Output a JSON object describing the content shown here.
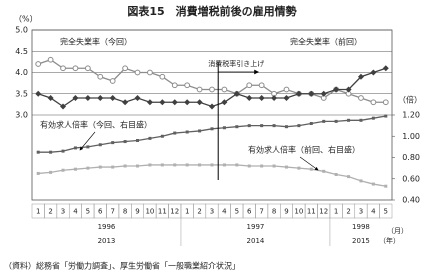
{
  "chart_data": {
    "type": "line",
    "title": "図表15　消費増税前後の雇用情勢",
    "y_label": "（%）",
    "y2_label": "（倍）",
    "month_label": "（月）",
    "year_unit": "（年）",
    "categories": [
      "1",
      "2",
      "3",
      "4",
      "5",
      "6",
      "7",
      "8",
      "9",
      "10",
      "11",
      "12",
      "1",
      "2",
      "3",
      "4",
      "5",
      "6",
      "7",
      "8",
      "9",
      "10",
      "11",
      "12",
      "1",
      "2",
      "3",
      "4",
      "5"
    ],
    "year_rows": [
      [
        "1996",
        "1997",
        "1998"
      ],
      [
        "2013",
        "2014",
        "2015"
      ]
    ],
    "ylim": [
      1.0,
      5.0
    ],
    "yticks": [
      {
        "value": 3.0,
        "label": "3.0"
      },
      {
        "value": 3.5,
        "label": "3.5"
      },
      {
        "value": 4.0,
        "label": "4.0"
      },
      {
        "value": 4.5,
        "label": "4.5"
      },
      {
        "value": 5.0,
        "label": "5.0"
      }
    ],
    "y2lim": [
      0.4,
      2.0
    ],
    "y2ticks": [
      {
        "value": 0.4,
        "label": "0.40"
      },
      {
        "value": 0.6,
        "label": "0.60"
      },
      {
        "value": 0.8,
        "label": "0.80"
      },
      {
        "value": 1.0,
        "label": "1.00"
      },
      {
        "value": 1.2,
        "label": "1.20"
      }
    ],
    "grid": true,
    "series": [
      {
        "name": "完全失業率（今回）",
        "color": "#8c8c8c",
        "marker": "open-circle",
        "values": [
          4.2,
          4.3,
          4.1,
          4.1,
          4.1,
          3.9,
          3.8,
          4.1,
          4.0,
          4.0,
          3.9,
          3.7,
          3.7,
          3.6,
          3.6,
          3.6,
          3.5,
          3.7,
          3.7,
          3.5,
          3.6,
          3.5,
          3.5,
          3.4,
          3.6,
          3.5,
          3.4,
          3.3,
          3.3
        ]
      },
      {
        "name": "完全失業率（前回）",
        "color": "#404040",
        "marker": "diamond",
        "values": [
          3.5,
          3.4,
          3.2,
          3.4,
          3.4,
          3.4,
          3.4,
          3.3,
          3.4,
          3.3,
          3.3,
          3.3,
          3.3,
          3.3,
          3.2,
          3.3,
          3.5,
          3.4,
          3.4,
          3.4,
          3.4,
          3.5,
          3.5,
          3.5,
          3.6,
          3.6,
          3.9,
          4.0,
          4.1
        ]
      },
      {
        "name": "有効求人倍率（今回、右目盛）",
        "color": "#606060",
        "marker": "small",
        "axis": "y2",
        "values": [
          0.85,
          0.85,
          0.86,
          0.89,
          0.9,
          0.92,
          0.94,
          0.95,
          0.96,
          0.98,
          1.0,
          1.03,
          1.04,
          1.05,
          1.07,
          1.08,
          1.09,
          1.1,
          1.1,
          1.1,
          1.09,
          1.1,
          1.12,
          1.14,
          1.14,
          1.15,
          1.15,
          1.17,
          1.19
        ]
      },
      {
        "name": "有効求人倍率（前回、右目盛）",
        "color": "#b0b0b0",
        "marker": "small",
        "axis": "y2",
        "values": [
          0.65,
          0.66,
          0.68,
          0.69,
          0.7,
          0.71,
          0.71,
          0.72,
          0.72,
          0.73,
          0.73,
          0.73,
          0.73,
          0.73,
          0.73,
          0.73,
          0.73,
          0.72,
          0.72,
          0.72,
          0.71,
          0.7,
          0.69,
          0.67,
          0.64,
          0.62,
          0.58,
          0.55,
          0.53
        ]
      }
    ],
    "annotation": {
      "text": "消費税率引き上げ",
      "index": 15
    },
    "source": "（資料）総務省「労働力調査」、厚生労働省「一般職業紹介状況」"
  }
}
